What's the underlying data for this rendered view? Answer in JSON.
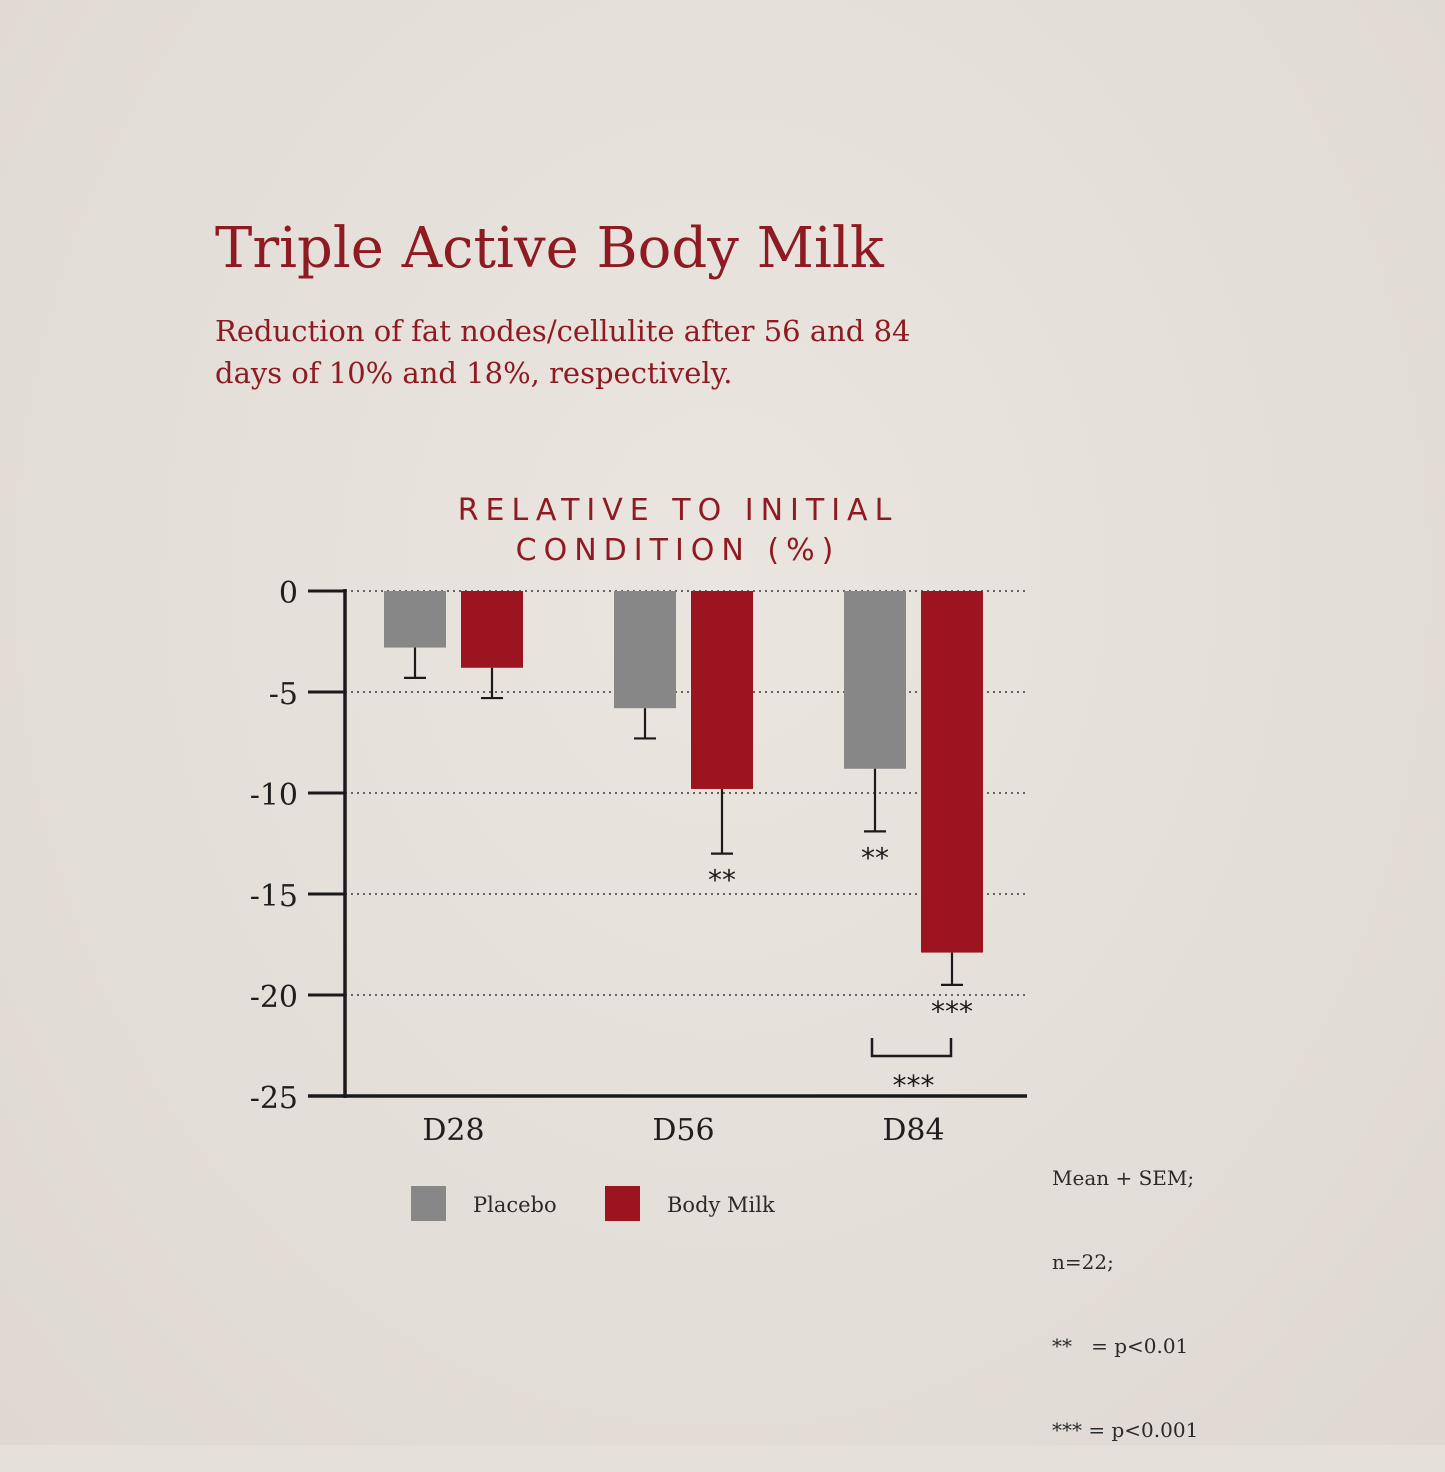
{
  "header": {
    "title": "Triple Active Body Milk",
    "subtitle": "Reduction of fat nodes/cellulite after 56 and 84 days of 10% and 18%, respectively."
  },
  "colors": {
    "text_red": "#8e1a22",
    "placebo": "#878787",
    "body_milk": "#9c1420",
    "axis": "#1a1a1a"
  },
  "chart_data": {
    "type": "bar",
    "title": "RELATIVE TO INITIAL CONDITION (%)",
    "title_lines": [
      "RELATIVE TO INITIAL",
      "CONDITION (%)"
    ],
    "categories": [
      "D28",
      "D56",
      "D84"
    ],
    "series": [
      {
        "name": "Placebo",
        "color": "#878787",
        "values": [
          -2.8,
          -5.8,
          -8.8
        ],
        "error": [
          1.5,
          1.5,
          3.1
        ],
        "significance": [
          "",
          "",
          "**"
        ]
      },
      {
        "name": "Body Milk",
        "color": "#9c1420",
        "values": [
          -3.8,
          -9.8,
          -17.9
        ],
        "error": [
          1.5,
          3.2,
          1.6
        ],
        "significance": [
          "",
          "**",
          "***"
        ]
      }
    ],
    "group_comparison": {
      "category": "D84",
      "label": "***"
    },
    "ylim": [
      -25,
      0
    ],
    "yticks": [
      0,
      -5,
      -10,
      -15,
      -20,
      -25
    ],
    "ytick_labels": [
      "0",
      "-5",
      "-10",
      "-15",
      "-20",
      "-25"
    ],
    "grid": "horizontal dotted",
    "legend_position": "bottom",
    "xlabel": "",
    "ylabel": ""
  },
  "footnote": {
    "lines": [
      "Mean + SEM;",
      "n=22;",
      "**   = p<0.01",
      "*** = p<0.001"
    ]
  }
}
